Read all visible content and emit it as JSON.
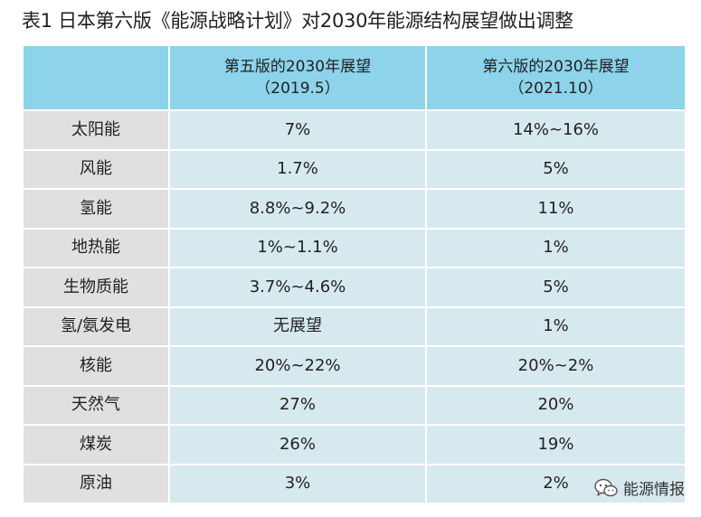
{
  "title": "表1 日本第六版《能源战略计划》对2030年能源结构展望做出调整",
  "header": {
    "col1": "",
    "col2_line1": "第五版的2030年展望",
    "col2_line2": "（2019.5）",
    "col3_line1": "第六版的2030年展望",
    "col3_line2": "（2021.10）"
  },
  "rows": [
    {
      "label": "太阳能",
      "v5": "7%",
      "v6": "14%~16%"
    },
    {
      "label": "风能",
      "v5": "1.7%",
      "v6": "5%"
    },
    {
      "label": "氢能",
      "v5": "8.8%~9.2%",
      "v6": "11%"
    },
    {
      "label": "地热能",
      "v5": "1%~1.1%",
      "v6": "1%"
    },
    {
      "label": "生物质能",
      "v5": "3.7%~4.6%",
      "v6": "5%"
    },
    {
      "label": "氢/氨发电",
      "v5": "无展望",
      "v6": "1%"
    },
    {
      "label": "核能",
      "v5": "20%~22%",
      "v6": "20%~2%"
    },
    {
      "label": "天然气",
      "v5": "27%",
      "v6": "20%"
    },
    {
      "label": "煤炭",
      "v5": "26%",
      "v6": "19%"
    },
    {
      "label": "原油",
      "v5": "3%",
      "v6": "2%"
    }
  ],
  "watermark": {
    "icon": "wechat-icon",
    "text": "能源情报"
  }
}
